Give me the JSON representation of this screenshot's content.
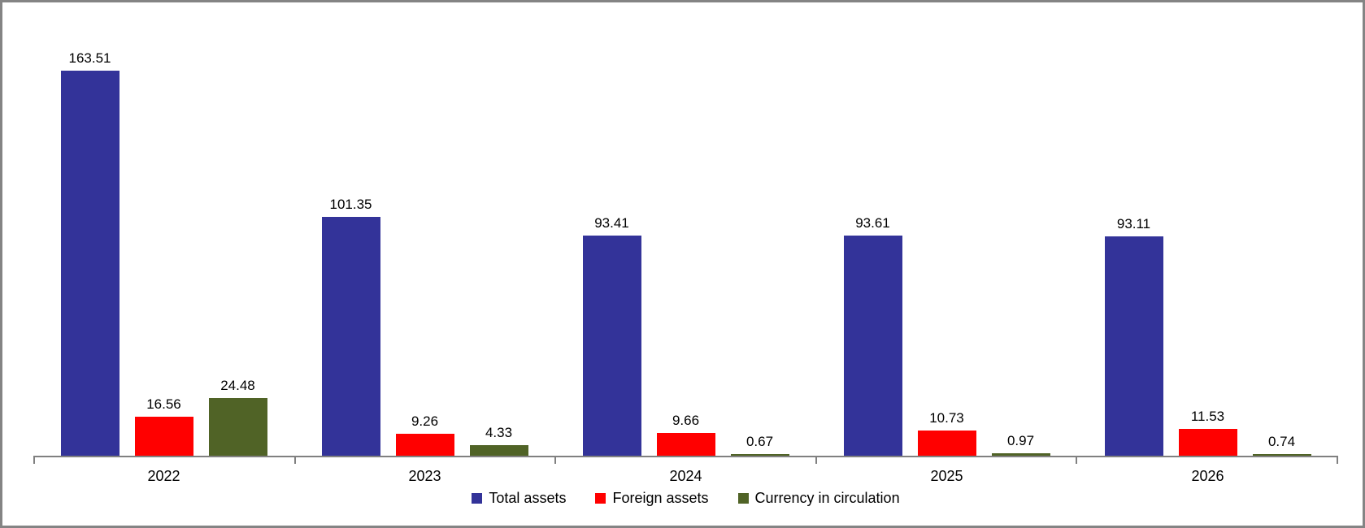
{
  "chart_data": {
    "type": "bar",
    "title": "",
    "xlabel": "",
    "ylabel": "",
    "categories": [
      "2022",
      "2023",
      "2024",
      "2025",
      "2026"
    ],
    "series": [
      {
        "name": "Total assets",
        "color": "#333399",
        "values": [
          163.51,
          101.35,
          93.41,
          93.61,
          93.11
        ],
        "labels": [
          "163.51",
          "101.35",
          "93.41",
          "93.61",
          "93.11"
        ]
      },
      {
        "name": "Foreign assets",
        "color": "#FF0000",
        "values": [
          16.56,
          9.26,
          9.66,
          10.73,
          11.53
        ],
        "labels": [
          "16.56",
          "9.26",
          "9.66",
          "10.73",
          "11.53"
        ]
      },
      {
        "name": "Currency in circulation",
        "color": "#506326",
        "values": [
          24.48,
          4.33,
          0.67,
          0.97,
          0.74
        ],
        "labels": [
          "24.48",
          "4.33",
          "0.67",
          "0.97",
          "0.74"
        ]
      }
    ],
    "ylim": [
      0,
      170
    ],
    "grid": false,
    "legend_position": "bottom",
    "data_labels": "outside-end",
    "axis_color": "#808080",
    "frame_border_color": "#848484"
  }
}
